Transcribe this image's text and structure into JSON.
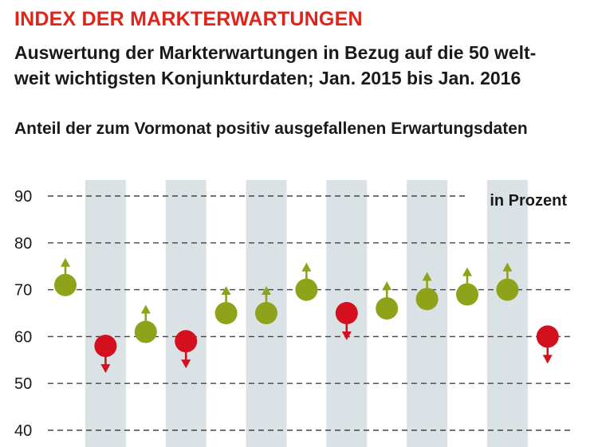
{
  "header": {
    "title": "INDEX DER MARKTERWARTUNGEN",
    "subtitle_line1": "Auswertung der Markterwartungen in Bezug auf die 50 welt-",
    "subtitle_line2": "weit wichtigsten Konjunkturdaten; Jan. 2015 bis Jan. 2016",
    "caption": "Anteil der zum Vormonat positiv ausgefallenen Erwartungsdaten"
  },
  "chart_data": {
    "type": "scatter",
    "title": "INDEX DER MARKTERWARTUNGEN",
    "ylabel": "",
    "unit_label": "in Prozent",
    "ylim": [
      40,
      90
    ],
    "yticks": [
      "40",
      "50",
      "60",
      "70",
      "80",
      "90"
    ],
    "grid": "dashed-horizontal",
    "series": [
      {
        "values": [
          71,
          58,
          61,
          59,
          65,
          65,
          70,
          65,
          66,
          68,
          69,
          70,
          60
        ],
        "direction": [
          "up",
          "down",
          "up",
          "down",
          "up",
          "up",
          "up",
          "down",
          "up",
          "up",
          "up",
          "up",
          "down"
        ]
      }
    ],
    "colors": {
      "up": "#8ea21a",
      "down": "#d4101e",
      "band": "#dbe2e6",
      "grid": "#444444"
    }
  }
}
